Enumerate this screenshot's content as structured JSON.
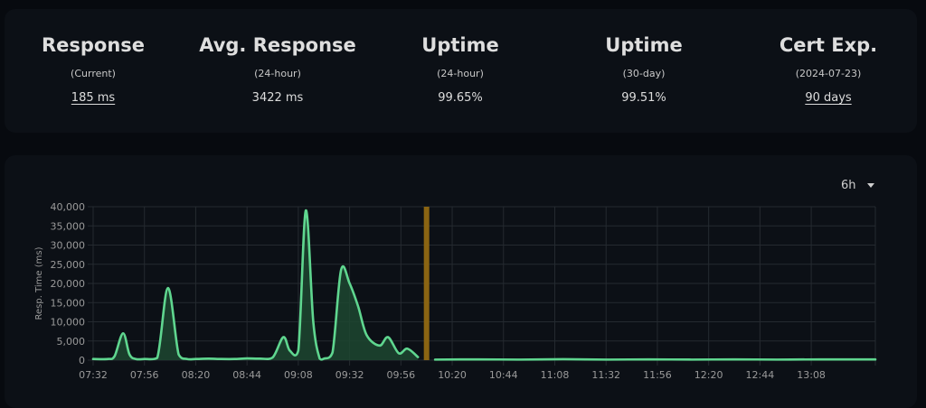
{
  "stats": [
    {
      "title": "Response",
      "subtitle": "(Current)",
      "value": "185 ms",
      "link": true
    },
    {
      "title": "Avg. Response",
      "subtitle": "(24-hour)",
      "value": "3422 ms",
      "link": false
    },
    {
      "title": "Uptime",
      "subtitle": "(24-hour)",
      "value": "99.65%",
      "link": false
    },
    {
      "title": "Uptime",
      "subtitle": "(30-day)",
      "value": "99.51%",
      "link": false
    },
    {
      "title": "Cert Exp.",
      "subtitle": "(2024-07-23)",
      "value": "90 days",
      "link": true
    }
  ],
  "period_selector": {
    "selected": "6h"
  },
  "colors": {
    "line": "#5fd68f",
    "fill": "#1d4630",
    "down_marker": "#8a6412",
    "grid": "#252a30",
    "tick_label": "#9a9a9a"
  },
  "chart_data": {
    "type": "area",
    "ylabel": "Resp. Time (ms)",
    "xlim_minutes": [
      0,
      366
    ],
    "ylim": [
      0,
      40000
    ],
    "y_ticks": [
      0,
      5000,
      10000,
      15000,
      20000,
      25000,
      30000,
      35000,
      40000
    ],
    "y_tick_labels": [
      "0",
      "5,000",
      "10,000",
      "15,000",
      "20,000",
      "25,000",
      "30,000",
      "35,000",
      "40,000"
    ],
    "x_tick_minutes": [
      0,
      24,
      48,
      72,
      96,
      120,
      144,
      168,
      192,
      216,
      240,
      264,
      288,
      312,
      336
    ],
    "x_tick_labels": [
      "07:32",
      "07:56",
      "08:20",
      "08:44",
      "09:08",
      "09:32",
      "09:56",
      "10:20",
      "10:44",
      "11:08",
      "11:32",
      "11:56",
      "12:20",
      "12:44",
      "13:08"
    ],
    "down_marker_minutes": 156,
    "series": [
      {
        "points": [
          [
            0,
            300
          ],
          [
            7,
            300
          ],
          [
            10,
            1000
          ],
          [
            14,
            7000
          ],
          [
            17,
            1500
          ],
          [
            20,
            300
          ],
          [
            24,
            300
          ],
          [
            30,
            600
          ],
          [
            35,
            18800
          ],
          [
            40,
            1500
          ],
          [
            44,
            300
          ],
          [
            48,
            300
          ],
          [
            54,
            400
          ],
          [
            60,
            300
          ],
          [
            66,
            300
          ],
          [
            72,
            450
          ],
          [
            78,
            400
          ],
          [
            84,
            700
          ],
          [
            89,
            6000
          ],
          [
            92,
            2500
          ],
          [
            96,
            2500
          ],
          [
            99.5,
            39000
          ],
          [
            103,
            10000
          ],
          [
            106,
            400
          ],
          [
            108,
            400
          ],
          [
            112,
            2000
          ],
          [
            116,
            23500
          ],
          [
            120,
            20000
          ],
          [
            124,
            14000
          ],
          [
            128,
            6500
          ],
          [
            134,
            3800
          ],
          [
            138,
            6000
          ],
          [
            143,
            1800
          ],
          [
            147,
            3000
          ],
          [
            152,
            800
          ]
        ]
      },
      {
        "points": [
          [
            160,
            150
          ],
          [
            180,
            200
          ],
          [
            200,
            150
          ],
          [
            220,
            250
          ],
          [
            240,
            150
          ],
          [
            260,
            200
          ],
          [
            280,
            150
          ],
          [
            300,
            200
          ],
          [
            320,
            150
          ],
          [
            340,
            200
          ],
          [
            366,
            180
          ]
        ]
      }
    ]
  }
}
